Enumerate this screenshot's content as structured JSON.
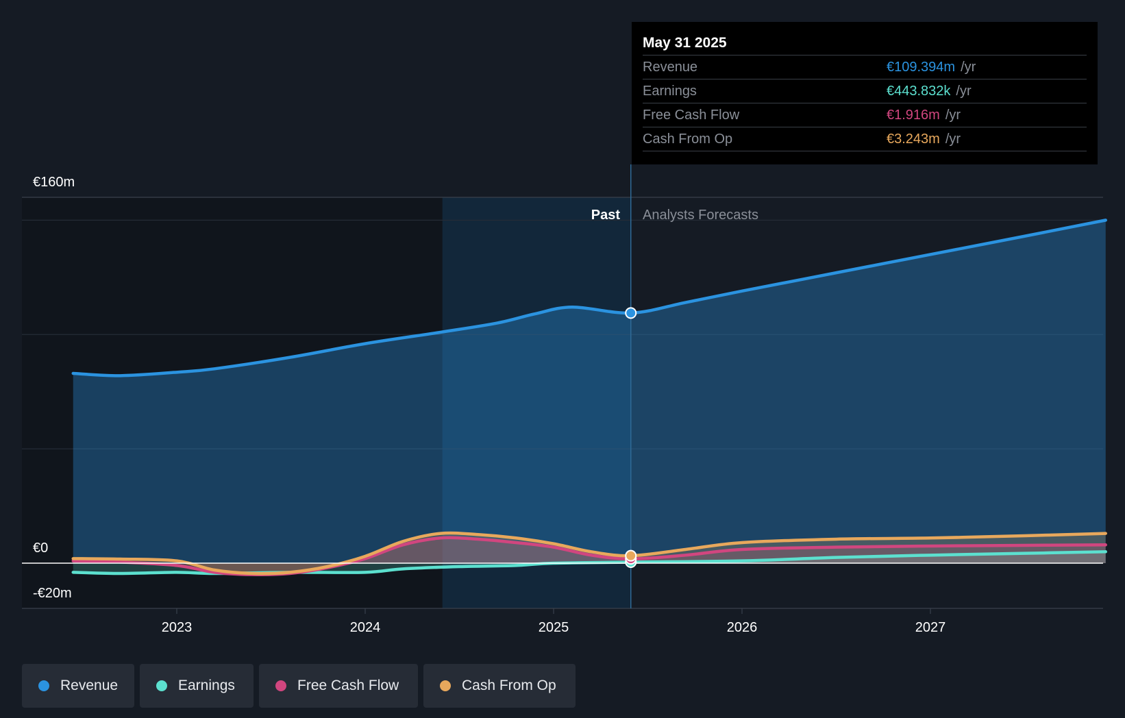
{
  "chart_data": {
    "type": "line",
    "title": "",
    "currency_axis_labels": {
      "top": "€160m",
      "zero": "€0",
      "bottom": "-€20m"
    },
    "ylim": [
      -20,
      160
    ],
    "x_ticks": [
      "2023",
      "2024",
      "2025",
      "2026",
      "2027"
    ],
    "xlim": [
      2022.45,
      2027.93
    ],
    "past_label": "Past",
    "forecast_label": "Analysts Forecasts",
    "divider_x": 2025.41,
    "highlight_start": 2024.41,
    "series": [
      {
        "name": "Revenue",
        "color": "#2b93e0",
        "x": [
          2022.45,
          2022.7,
          2023.0,
          2023.2,
          2023.6,
          2024.0,
          2024.4,
          2024.7,
          2024.9,
          2025.1,
          2025.41,
          2025.7,
          2026.0,
          2026.5,
          2027.0,
          2027.5,
          2027.93
        ],
        "values": [
          83,
          82,
          83.5,
          85,
          90,
          96,
          101,
          105,
          109,
          112,
          109.4,
          114,
          119,
          127,
          135,
          143,
          150
        ]
      },
      {
        "name": "Earnings",
        "color": "#5ce0cf",
        "x": [
          2022.45,
          2022.7,
          2023.0,
          2023.2,
          2023.6,
          2024.0,
          2024.2,
          2024.5,
          2024.8,
          2025.0,
          2025.41,
          2026.0,
          2026.5,
          2027.0,
          2027.5,
          2027.93
        ],
        "values": [
          -4,
          -4.5,
          -4,
          -4.5,
          -4,
          -4,
          -2.5,
          -1.5,
          -1,
          0,
          0.44,
          1,
          2.5,
          3.5,
          4.3,
          5
        ]
      },
      {
        "name": "Free Cash Flow",
        "color": "#d1467f",
        "x": [
          2022.45,
          2022.7,
          2023.0,
          2023.2,
          2023.4,
          2023.6,
          2023.8,
          2024.0,
          2024.2,
          2024.4,
          2024.6,
          2024.8,
          2025.0,
          2025.2,
          2025.41,
          2025.7,
          2026.0,
          2026.5,
          2027.0,
          2027.5,
          2027.93
        ],
        "values": [
          1,
          0.5,
          -1,
          -4,
          -5,
          -4.5,
          -2,
          2,
          8,
          11,
          10.5,
          9,
          7,
          3.5,
          1.9,
          3.5,
          6,
          7,
          7.5,
          7.8,
          8
        ]
      },
      {
        "name": "Cash From Op",
        "color": "#e8a85c",
        "x": [
          2022.45,
          2022.7,
          2023.0,
          2023.2,
          2023.4,
          2023.6,
          2023.8,
          2024.0,
          2024.2,
          2024.4,
          2024.6,
          2024.8,
          2025.0,
          2025.2,
          2025.41,
          2025.7,
          2026.0,
          2026.5,
          2027.0,
          2027.5,
          2027.93
        ],
        "values": [
          2,
          1.8,
          1,
          -3,
          -4.5,
          -4,
          -1.5,
          3,
          9.5,
          13,
          12.5,
          11,
          8.5,
          5,
          3.24,
          6,
          9,
          10.5,
          11,
          12,
          13
        ]
      }
    ],
    "markers": {
      "x": 2025.41,
      "Revenue": 109.4,
      "Earnings": 0.44,
      "Free Cash Flow": 1.9,
      "Cash From Op": 3.24
    }
  },
  "tooltip": {
    "date": "May 31 2025",
    "rows": [
      {
        "label": "Revenue",
        "value": "€109.394m",
        "unit": "/yr",
        "color": "#2b93e0"
      },
      {
        "label": "Earnings",
        "value": "€443.832k",
        "unit": "/yr",
        "color": "#5ce0cf"
      },
      {
        "label": "Free Cash Flow",
        "value": "€1.916m",
        "unit": "/yr",
        "color": "#d1467f"
      },
      {
        "label": "Cash From Op",
        "value": "€3.243m",
        "unit": "/yr",
        "color": "#e8a85c"
      }
    ]
  },
  "legend": [
    {
      "label": "Revenue",
      "color": "#2b93e0"
    },
    {
      "label": "Earnings",
      "color": "#5ce0cf"
    },
    {
      "label": "Free Cash Flow",
      "color": "#d1467f"
    },
    {
      "label": "Cash From Op",
      "color": "#e8a85c"
    }
  ]
}
